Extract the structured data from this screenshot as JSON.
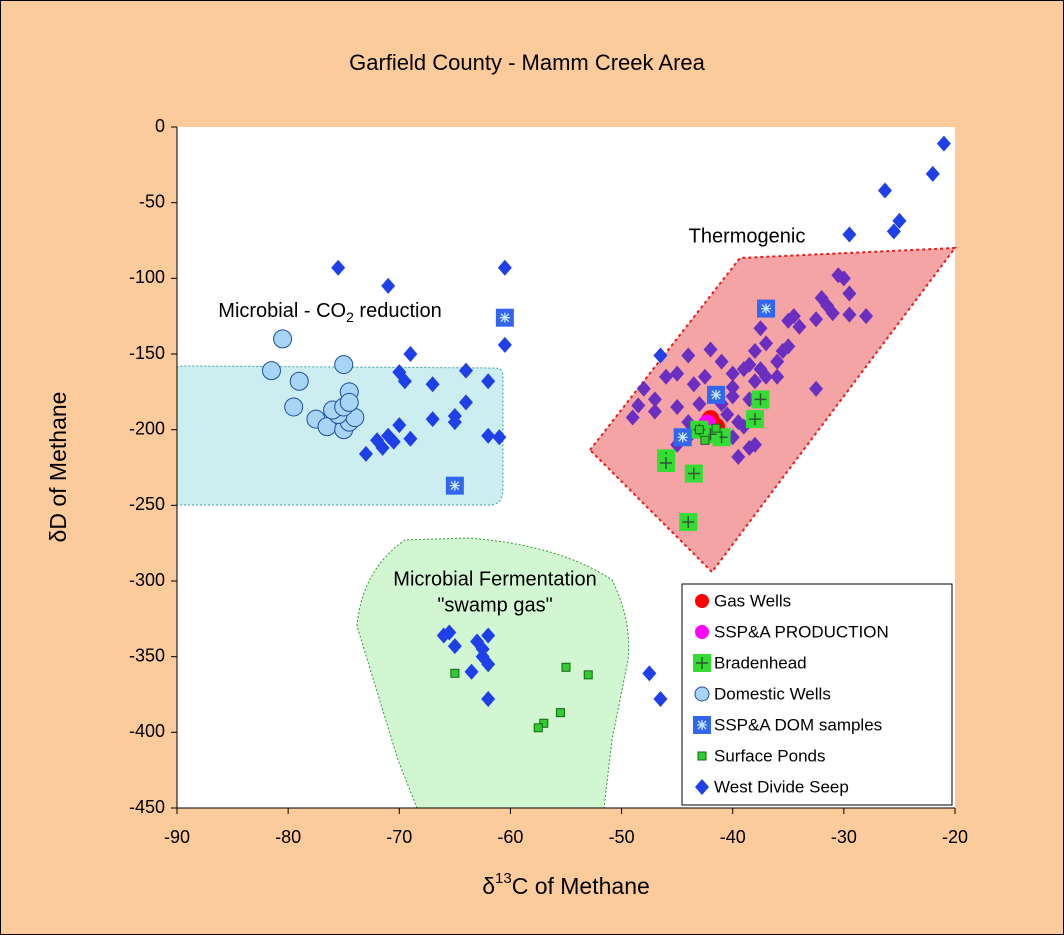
{
  "chart_data": {
    "type": "scatter",
    "title": "Garfield County - Mamm Creek Area",
    "x_label": {
      "prefix": "δ",
      "sup": "13",
      "suffix": "C of Methane"
    },
    "y_label": "δD of Methane",
    "annotations": {
      "thermogenic": "Thermogenic",
      "co2": {
        "text": "Microbial - CO",
        "sub": "2",
        "after": " reduction"
      },
      "fermentation": [
        "Microbial Fermentation",
        "\"swamp gas\""
      ]
    },
    "xlim": [
      -90,
      -20
    ],
    "xticks": [
      -90,
      -80,
      -70,
      -60,
      -50,
      -40,
      -30,
      -20
    ],
    "ylim": [
      -450,
      0
    ],
    "yticks": [
      -450,
      -400,
      -350,
      -300,
      -250,
      -200,
      -150,
      -100,
      -50,
      0
    ],
    "legend": "lower right",
    "series": [
      {
        "color": "#6A2FC0",
        "marker": "diamond",
        "x": [
          -30.5,
          -30,
          -32,
          -31.5,
          -31,
          -29.5,
          -32.5,
          -34.5,
          -34,
          -35.5,
          -35,
          -36,
          -37.5,
          -37,
          -38,
          -38.5,
          -37.5,
          -38,
          -37,
          -39,
          -40,
          -41,
          -42,
          -42.5,
          -43.5,
          -44,
          -45,
          -46,
          -47,
          -48,
          -48.5,
          -49,
          -47,
          -45,
          -44,
          -43,
          -41,
          -40,
          -40.5,
          -39.5,
          -39,
          -41.5,
          -42,
          -40,
          -38,
          -39.5,
          -38.5,
          -36,
          -32.5,
          -28,
          -29.5,
          -35,
          -40,
          -41.5,
          -38.5,
          -44,
          -45,
          -43.5
        ],
        "values": [
          -98,
          -100,
          -113,
          -118,
          -123,
          -124,
          -127,
          -125,
          -132,
          -148,
          -145,
          -155,
          -133,
          -143,
          -148,
          -157,
          -160,
          -168,
          -165,
          -160,
          -163,
          -155,
          -147,
          -165,
          -170,
          -151,
          -163,
          -165,
          -180,
          -173,
          -184,
          -192,
          -188,
          -185,
          -195,
          -183,
          -183,
          -178,
          -190,
          -195,
          -198,
          -195,
          -200,
          -205,
          -210,
          -218,
          -212,
          -165,
          -173,
          -125,
          -110,
          -128,
          -172,
          -178,
          -180,
          -205,
          -210,
          -200
        ]
      },
      {
        "name": "West Divide Seep",
        "color": "#1F3FE8",
        "marker": "diamond",
        "x": [
          -21,
          -22,
          -26.3,
          -25,
          -25.5,
          -29.5,
          -75.5,
          -71,
          -60.5,
          -60.5,
          -69,
          -70,
          -69.5,
          -67,
          -64,
          -62,
          -75,
          -64,
          -65,
          -65,
          -67,
          -70,
          -71,
          -72,
          -70.5,
          -69,
          -71.5,
          -73,
          -62,
          -61,
          -66,
          -65.5,
          -65,
          -63,
          -62.5,
          -62,
          -62.5,
          -62,
          -63.5,
          -62,
          -47.5,
          -46.5,
          -46.5
        ],
        "values": [
          -11,
          -31,
          -42,
          -62,
          -69,
          -71,
          -93,
          -105,
          -93,
          -144,
          -150,
          -162,
          -168,
          -170,
          -161,
          -168,
          -182,
          -182,
          -191,
          -195,
          -193,
          -197,
          -204,
          -207,
          -208,
          -206,
          -212,
          -216,
          -204,
          -205,
          -336,
          -334,
          -343,
          -340,
          -345,
          -336,
          -350,
          -355,
          -360,
          -378,
          -361,
          -378,
          -151
        ]
      },
      {
        "name": "Domestic Wells",
        "color": "#A8D4F5",
        "marker": "circle",
        "x": [
          -80.5,
          -81.5,
          -79,
          -79.5,
          -75,
          -74.5,
          -77.5,
          -76.5,
          -75,
          -74.5,
          -74,
          -75.5,
          -76,
          -75,
          -74.5
        ],
        "values": [
          -140,
          -161,
          -168,
          -185,
          -157,
          -175,
          -193,
          -198,
          -200,
          -195,
          -192,
          -190,
          -187,
          -185,
          -182
        ]
      },
      {
        "name": "Gas Wells",
        "color": "#FF0000",
        "marker": "circle",
        "x": [
          -42,
          -41.5
        ],
        "values": [
          -193,
          -198
        ]
      },
      {
        "name": "SSP&A PRODUCTION",
        "color": "#FF00FF",
        "marker": "circle",
        "x": [
          -42.3
        ],
        "values": [
          -196
        ]
      },
      {
        "name": "Bradenhead",
        "color": "#33DD33",
        "marker": "square-plus",
        "x": [
          -37.5,
          -38,
          -41,
          -42,
          -46,
          -46,
          -43.5,
          -44,
          -43
        ],
        "values": [
          -180,
          -193,
          -205,
          -203,
          -219,
          -222,
          -229,
          -261,
          -200
        ]
      },
      {
        "name": "SSP&A DOM samples",
        "color": "#3366EE",
        "marker": "square-star",
        "x": [
          -60.5,
          -65,
          -37,
          -41.5,
          -44.5
        ],
        "values": [
          -126,
          -237,
          -120,
          -177,
          -205
        ]
      },
      {
        "name": "Surface Ponds",
        "color": "#33CC33",
        "marker": "square",
        "x": [
          -65,
          -55,
          -53,
          -55.5,
          -57,
          -57.5,
          -43,
          -42.5,
          -41.5
        ],
        "values": [
          -361,
          -357,
          -362,
          -387,
          -394,
          -397,
          -200,
          -207,
          -199
        ]
      }
    ]
  }
}
